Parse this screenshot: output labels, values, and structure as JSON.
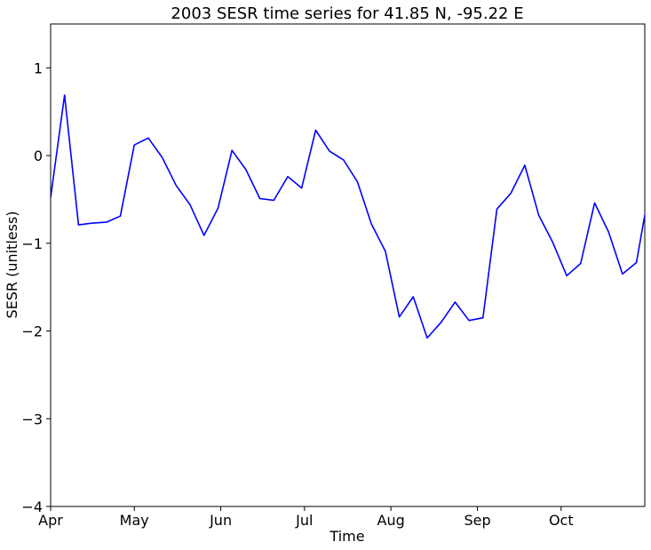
{
  "chart_data": {
    "type": "line",
    "title": "2003 SESR time series for 41.85 N, -95.22 E",
    "xlabel": "Time",
    "ylabel": "SESR (unitless)",
    "ylim": [
      -4,
      1.5
    ],
    "xlim": [
      "2003-04-01",
      "2003-10-31"
    ],
    "grid": false,
    "y_ticks": [
      {
        "value": 1,
        "label": "1"
      },
      {
        "value": 0,
        "label": "0"
      },
      {
        "value": -1,
        "label": "−1"
      },
      {
        "value": -2,
        "label": "−2"
      },
      {
        "value": -3,
        "label": "−3"
      },
      {
        "value": -4,
        "label": "−4"
      }
    ],
    "x_ticks": [
      {
        "date": "2003-04-01",
        "label": "Apr"
      },
      {
        "date": "2003-05-01",
        "label": "May"
      },
      {
        "date": "2003-06-01",
        "label": "Jun"
      },
      {
        "date": "2003-07-01",
        "label": "Jul"
      },
      {
        "date": "2003-08-01",
        "label": "Aug"
      },
      {
        "date": "2003-09-01",
        "label": "Sep"
      },
      {
        "date": "2003-10-01",
        "label": "Oct"
      }
    ],
    "series": [
      {
        "color": "#0000ff",
        "x": [
          "2003-04-01",
          "2003-04-06",
          "2003-04-11",
          "2003-04-16",
          "2003-04-21",
          "2003-04-26",
          "2003-05-01",
          "2003-05-06",
          "2003-05-11",
          "2003-05-16",
          "2003-05-21",
          "2003-05-26",
          "2003-05-31",
          "2003-06-05",
          "2003-06-10",
          "2003-06-15",
          "2003-06-20",
          "2003-06-25",
          "2003-06-30",
          "2003-07-05",
          "2003-07-10",
          "2003-07-15",
          "2003-07-20",
          "2003-07-25",
          "2003-07-30",
          "2003-08-04",
          "2003-08-09",
          "2003-08-14",
          "2003-08-19",
          "2003-08-24",
          "2003-08-29",
          "2003-09-03",
          "2003-09-08",
          "2003-09-13",
          "2003-09-18",
          "2003-09-23",
          "2003-09-28",
          "2003-10-03",
          "2003-10-08",
          "2003-10-13",
          "2003-10-18",
          "2003-10-23",
          "2003-10-28",
          "2003-11-01"
        ],
        "values": [
          -0.48,
          0.69,
          -0.79,
          -0.77,
          -0.76,
          -0.69,
          0.12,
          0.2,
          -0.02,
          -0.34,
          -0.56,
          -0.91,
          -0.6,
          0.06,
          -0.16,
          -0.49,
          -0.51,
          -0.24,
          -0.37,
          0.29,
          0.05,
          -0.05,
          -0.3,
          -0.78,
          -1.09,
          -1.84,
          -1.61,
          -2.08,
          -1.9,
          -1.67,
          -1.88,
          -1.85,
          -0.61,
          -0.43,
          -0.11,
          -0.68,
          -0.99,
          -1.37,
          -1.23,
          -0.54,
          -0.87,
          -1.35,
          -1.22,
          -0.5
        ]
      }
    ]
  }
}
